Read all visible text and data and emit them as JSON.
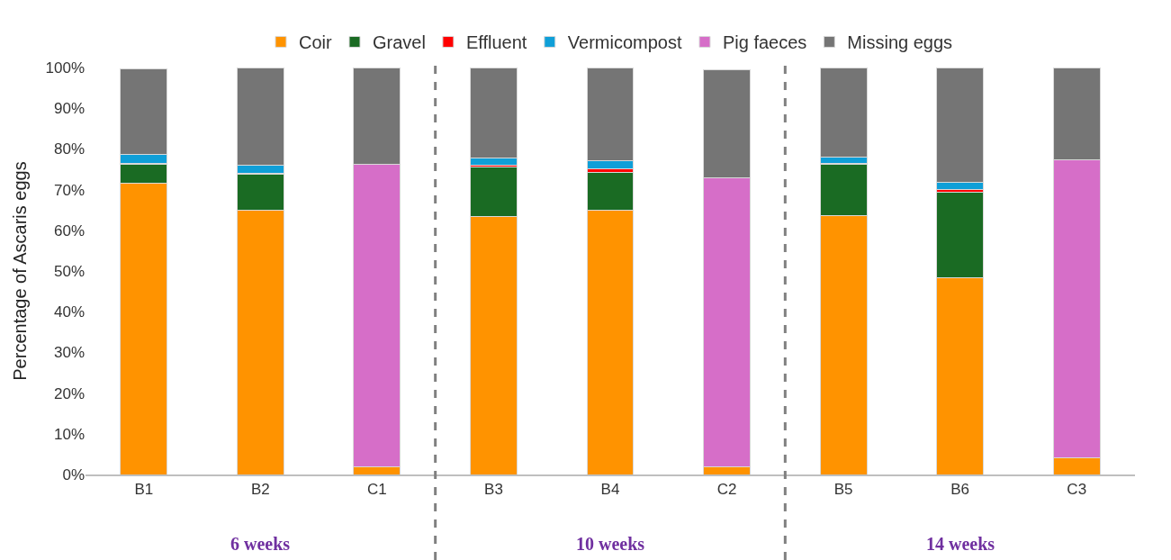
{
  "chart_data": {
    "type": "bar",
    "stacked": true,
    "ylabel": "Percentage of Ascaris eggs",
    "categories": [
      "B1",
      "B2",
      "C1",
      "B3",
      "B4",
      "C2",
      "B5",
      "B6",
      "C3"
    ],
    "series": [
      {
        "name": "Coir",
        "color": "#ff9300",
        "values": [
          71.5,
          65.0,
          1.8,
          63.3,
          65.0,
          1.8,
          63.6,
          48.3,
          4.0
        ]
      },
      {
        "name": "Gravel",
        "color": "#1a6b23",
        "values": [
          4.7,
          8.7,
          null,
          12.3,
          9.3,
          null,
          12.6,
          21.1,
          null
        ]
      },
      {
        "name": "Effluent",
        "color": "#ff0000",
        "values": [
          0.3,
          0.2,
          null,
          0.4,
          0.8,
          null,
          0.3,
          0.7,
          null
        ]
      },
      {
        "name": "Vermicompost",
        "color": "#0f9fd8",
        "values": [
          2.2,
          2.2,
          null,
          1.8,
          2.0,
          null,
          1.5,
          1.6,
          null
        ]
      },
      {
        "name": "Pig faeces",
        "color": "#d66ec8",
        "values": [
          null,
          null,
          74.4,
          null,
          null,
          71.2,
          null,
          null,
          73.3
        ]
      },
      {
        "name": "Missing eggs",
        "color": "#757575",
        "values": [
          21.0,
          23.9,
          23.8,
          22.2,
          22.9,
          26.4,
          22.0,
          28.3,
          22.7
        ]
      }
    ],
    "ylim": [
      0,
      100
    ],
    "yticks": [
      {
        "value": 0,
        "label": "0%"
      },
      {
        "value": 10,
        "label": "10%"
      },
      {
        "value": 20,
        "label": "20%"
      },
      {
        "value": 30,
        "label": "30%"
      },
      {
        "value": 40,
        "label": "40%"
      },
      {
        "value": 50,
        "label": "50%"
      },
      {
        "value": 60,
        "label": "60%"
      },
      {
        "value": 70,
        "label": "70%"
      },
      {
        "value": 80,
        "label": "80%"
      },
      {
        "value": 90,
        "label": "90%"
      },
      {
        "value": 100,
        "label": "100%"
      }
    ],
    "annotations": [
      "6 weeks",
      "10 weeks",
      "14 weeks"
    ],
    "legend": "top"
  }
}
